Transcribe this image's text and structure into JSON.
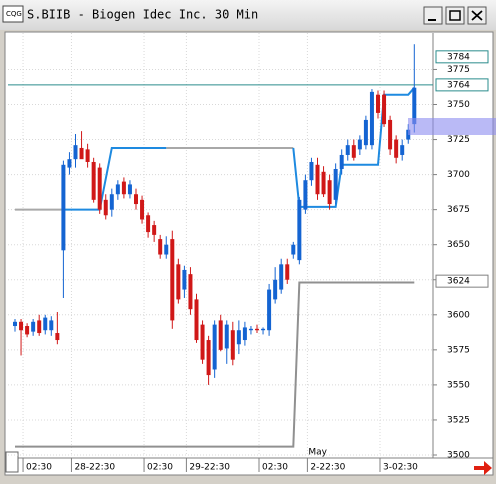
{
  "chart_data": {
    "type": "candlestick",
    "title": "S.BIIB - Biogen Idec Inc. 30 Min",
    "categories": [
      null,
      "02:30",
      null,
      null,
      null,
      null,
      null,
      null,
      null,
      "28-22:30",
      null,
      null,
      null,
      null,
      null,
      null,
      null,
      null,
      null,
      null,
      null,
      "02:30",
      null,
      null,
      null,
      null,
      null,
      null,
      "29-22:30",
      null,
      null,
      null,
      null,
      null,
      null,
      null,
      null,
      null,
      null,
      null,
      "02:30",
      null,
      null,
      null,
      null,
      null,
      null,
      null,
      "2-22:30",
      null,
      null,
      null,
      null,
      null,
      null,
      null,
      null,
      null,
      null,
      null,
      "3-02:30",
      null,
      null,
      null,
      null,
      null,
      null
    ],
    "open": [
      3592,
      3595,
      3592,
      3588,
      3596,
      3589,
      3589,
      3587,
      3646,
      3705,
      3711,
      3719,
      3718,
      3709,
      3705,
      3682,
      3675,
      3686,
      3695,
      3686,
      3686,
      3682,
      3671,
      3664,
      3654,
      3643,
      3654,
      3636,
      3618,
      3629,
      3611,
      3593,
      3582,
      3561,
      3596,
      3576,
      3589,
      3579,
      3582,
      3589,
      3590,
      3589,
      3589,
      3611,
      3618,
      3636,
      3643,
      3639,
      3675,
      3696,
      3707,
      3702,
      3696,
      3682,
      3704,
      3714,
      3721,
      3718,
      3721,
      3721,
      3757,
      3757,
      3739,
      3725,
      3714,
      3725,
      3736
    ],
    "high": [
      3597,
      3597,
      3594,
      3597,
      3600,
      3600,
      3599,
      3602,
      3710,
      3716,
      3729,
      3731,
      3722,
      3712,
      3708,
      3686,
      3690,
      3696,
      3698,
      3696,
      3690,
      3685,
      3673,
      3667,
      3657,
      3656,
      3660,
      3640,
      3635,
      3634,
      3615,
      3596,
      3585,
      3596,
      3600,
      3596,
      3595,
      3596,
      3595,
      3592,
      3593,
      3591,
      3622,
      3634,
      3640,
      3640,
      3652,
      3684,
      3700,
      3712,
      3712,
      3706,
      3700,
      3708,
      3718,
      3725,
      3725,
      3728,
      3742,
      3761,
      3760,
      3760,
      3742,
      3728,
      3725,
      3736,
      3793
    ],
    "low": [
      3588,
      3571,
      3584,
      3585,
      3585,
      3586,
      3585,
      3579,
      3612,
      3700,
      3705,
      3712,
      3705,
      3680,
      3672,
      3668,
      3670,
      3682,
      3683,
      3683,
      3675,
      3665,
      3655,
      3652,
      3640,
      3640,
      3590,
      3608,
      3612,
      3600,
      3580,
      3565,
      3550,
      3555,
      3574,
      3565,
      3564,
      3572,
      3578,
      3586,
      3587,
      3586,
      3585,
      3608,
      3615,
      3622,
      3640,
      3636,
      3672,
      3692,
      3682,
      3684,
      3675,
      3679,
      3700,
      3710,
      3710,
      3714,
      3718,
      3718,
      3740,
      3734,
      3714,
      3708,
      3710,
      3722,
      3730
    ],
    "close": [
      3595,
      3589,
      3586,
      3595,
      3587,
      3598,
      3596,
      3582,
      3707,
      3711,
      3721,
      3711,
      3709,
      3682,
      3675,
      3671,
      3686,
      3693,
      3686,
      3693,
      3679,
      3668,
      3659,
      3657,
      3643,
      3650,
      3596,
      3611,
      3632,
      3604,
      3582,
      3568,
      3557,
      3593,
      3575,
      3593,
      3568,
      3589,
      3591,
      3590,
      3589,
      3590,
      3618,
      3625,
      3636,
      3625,
      3650,
      3682,
      3696,
      3709,
      3686,
      3686,
      3679,
      3704,
      3714,
      3721,
      3712,
      3725,
      3739,
      3759,
      3744,
      3736,
      3718,
      3712,
      3721,
      3732,
      3762
    ],
    "up_color": "#1464d2",
    "down_color": "#d01818",
    "lines": [
      {
        "color": "#a8a8a8",
        "x": [
          0,
          8,
          8,
          25,
          46
        ],
        "values": [
          3675,
          3675,
          null,
          3719,
          3719
        ]
      },
      {
        "color": "#1e8ae0",
        "x": [
          8,
          14,
          16,
          25,
          25,
          46,
          47,
          53,
          54,
          60,
          61,
          65,
          66
        ],
        "values": [
          3675,
          3675,
          3719,
          3719,
          null,
          3719,
          3677,
          3677,
          3707,
          3707,
          3757,
          3757,
          3762
        ]
      },
      {
        "color": "#909090",
        "x": [
          0,
          46,
          47,
          66
        ],
        "values": [
          3506,
          3506,
          3623,
          3623
        ]
      }
    ],
    "price_line": 3764,
    "price_line_color": "#2a8c8c",
    "price_labels": [
      3784,
      3764,
      3624
    ],
    "annotations": [
      {
        "text": "May",
        "x": 48
      }
    ],
    "ylim": [
      3500,
      3801
    ],
    "yticks": [
      3500,
      3525,
      3550,
      3575,
      3600,
      3625,
      3650,
      3675,
      3700,
      3725,
      3750,
      3775
    ],
    "grid": true
  }
}
